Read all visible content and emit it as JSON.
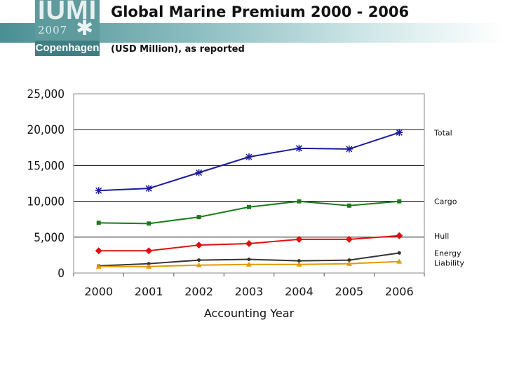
{
  "header": {
    "title": "Global Marine Premium 2000 - 2006",
    "subtitle": "(USD Million), as reported",
    "logo": {
      "brand": "IUMI",
      "year": "2007",
      "city": "Copenhagen"
    },
    "band_color": "#4a8f93"
  },
  "chart_data": {
    "type": "line",
    "title": "Global Marine Premium 2000 - 2006",
    "subtitle": "(USD Million), as reported",
    "xlabel": "Accounting Year",
    "ylabel": "",
    "categories": [
      "2000",
      "2001",
      "2002",
      "2003",
      "2004",
      "2005",
      "2006"
    ],
    "ylim": [
      0,
      25000
    ],
    "yticks": [
      0,
      5000,
      10000,
      15000,
      20000,
      25000
    ],
    "ytick_labels": [
      "0",
      "5,000",
      "10,000",
      "15,000",
      "20,000",
      "25,000"
    ],
    "grid": "horizontal",
    "legend": "series labels at right of plot",
    "series": [
      {
        "name": "Total",
        "color": "#1a1a99",
        "marker": "asterisk",
        "values": [
          11500,
          11800,
          14000,
          16200,
          17400,
          17300,
          19600
        ]
      },
      {
        "name": "Cargo",
        "color": "#1e7a1e",
        "marker": "square",
        "values": [
          7000,
          6900,
          7800,
          9200,
          10000,
          9400,
          10000
        ]
      },
      {
        "name": "Hull",
        "color": "#e01010",
        "marker": "diamond",
        "values": [
          3100,
          3100,
          3900,
          4100,
          4700,
          4700,
          5200
        ]
      },
      {
        "name": "Energy",
        "color": "#333333",
        "marker": "dot",
        "values": [
          1000,
          1300,
          1800,
          1900,
          1700,
          1800,
          2800
        ]
      },
      {
        "name": "Liability",
        "color": "#e39a00",
        "marker": "triangle",
        "values": [
          900,
          900,
          1100,
          1200,
          1200,
          1300,
          1600
        ]
      }
    ]
  }
}
